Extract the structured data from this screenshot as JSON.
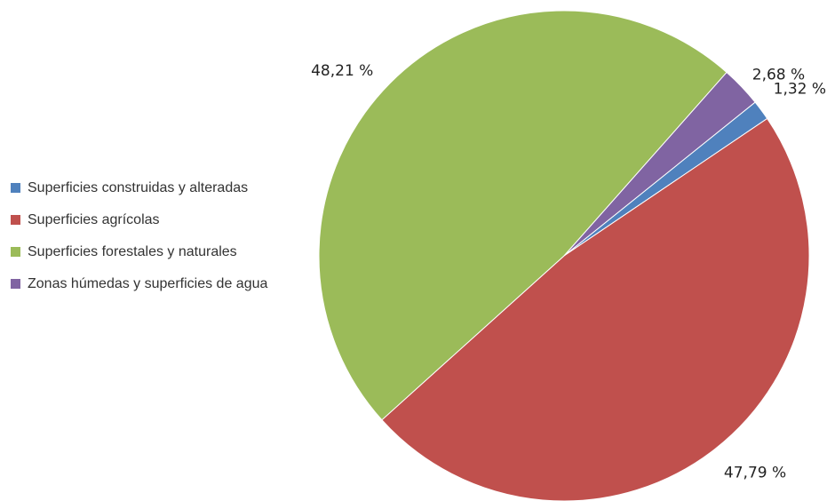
{
  "chart_data": {
    "type": "pie",
    "categories": [
      "Superficies construidas y alteradas",
      "Superficies agrícolas",
      "Superficies forestales y naturales",
      "Zonas húmedas y superficies de agua"
    ],
    "values": [
      1.32,
      47.79,
      48.21,
      2.68
    ],
    "value_labels": [
      "1,32 %",
      "47,79 %",
      "48,21 %",
      "2,68 %"
    ],
    "colors": [
      "#4f81bd",
      "#c0504d",
      "#9bbb59",
      "#8064a2"
    ],
    "legend": "left"
  }
}
